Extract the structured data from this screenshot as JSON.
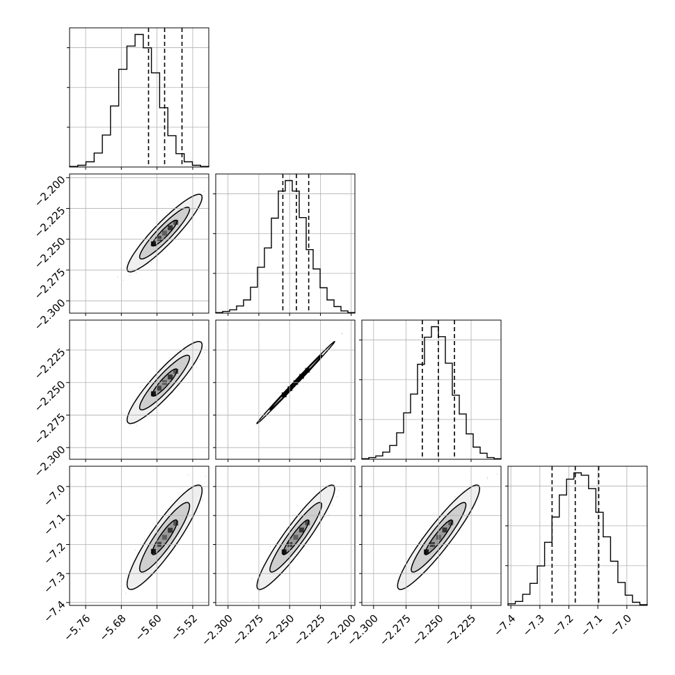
{
  "chart_data": {
    "type": "corner",
    "grid": true,
    "parameters": [
      {
        "range": [
          -5.796,
          -5.484
        ],
        "ticks": [
          -5.76,
          -5.68,
          -5.6,
          -5.52
        ],
        "tick_labels": [
          "−5.76",
          "−5.68",
          "−5.60",
          "−5.52"
        ],
        "mean": -5.583,
        "sigma": 0.028,
        "quantiles": [
          -5.619,
          -5.583,
          -5.544
        ],
        "hist": [
          1,
          3,
          9,
          24,
          55,
          105,
          168,
          208,
          228,
          205,
          162,
          102,
          54,
          23,
          9,
          3,
          1
        ]
      },
      {
        "range": [
          -2.31,
          -2.197
        ],
        "ticks": [
          -2.3,
          -2.275,
          -2.25,
          -2.225,
          -2.2
        ],
        "tick_labels": [
          "−2.300",
          "−2.275",
          "−2.250",
          "−2.225",
          "−2.200"
        ],
        "mean": -2.245,
        "sigma": 0.0105,
        "quantiles": [
          -2.2555,
          -2.2445,
          -2.2345
        ],
        "hist": [
          1,
          3,
          6,
          13,
          24,
          47,
          83,
          118,
          172,
          221,
          240,
          221,
          173,
          115,
          80,
          46,
          24,
          12,
          4,
          1
        ]
      },
      {
        "range": [
          -2.309,
          -2.202
        ],
        "ticks": [
          -2.3,
          -2.275,
          -2.25,
          -2.225
        ],
        "tick_labels": [
          "−2.300",
          "−2.275",
          "−2.250",
          "−2.225"
        ],
        "mean": -2.25,
        "sigma": 0.0105,
        "quantiles": [
          -2.2625,
          -2.2502,
          -2.2378
        ],
        "hist": [
          1,
          3,
          6,
          13,
          25,
          48,
          84,
          118,
          172,
          221,
          240,
          222,
          174,
          116,
          82,
          46,
          22,
          11,
          3,
          1
        ]
      },
      {
        "range": [
          -7.41,
          -6.93
        ],
        "ticks": [
          -7.4,
          -7.3,
          -7.2,
          -7.1,
          -7.0
        ],
        "tick_labels": [
          "−7.4",
          "−7.3",
          "−7.2",
          "−7.1",
          "−7.0"
        ],
        "mean": -7.175,
        "sigma": 0.06,
        "quantiles": [
          -7.258,
          -7.178,
          -7.097
        ],
        "hist": [
          2,
          5,
          14,
          28,
          50,
          80,
          112,
          140,
          160,
          168,
          165,
          148,
          118,
          87,
          56,
          29,
          13,
          4,
          1
        ]
      }
    ],
    "correlations": [
      {
        "i": 1,
        "j": 0,
        "rho": 0.92
      },
      {
        "i": 2,
        "j": 0,
        "rho": 0.91
      },
      {
        "i": 2,
        "j": 1,
        "rho": 0.998
      },
      {
        "i": 3,
        "j": 0,
        "rho": 0.9
      },
      {
        "i": 3,
        "j": 1,
        "rho": 0.93
      },
      {
        "i": 3,
        "j": 2,
        "rho": 0.93
      }
    ],
    "colors": {
      "line": "#000000",
      "grid": "#b0b0b0",
      "points": "#000000"
    }
  }
}
